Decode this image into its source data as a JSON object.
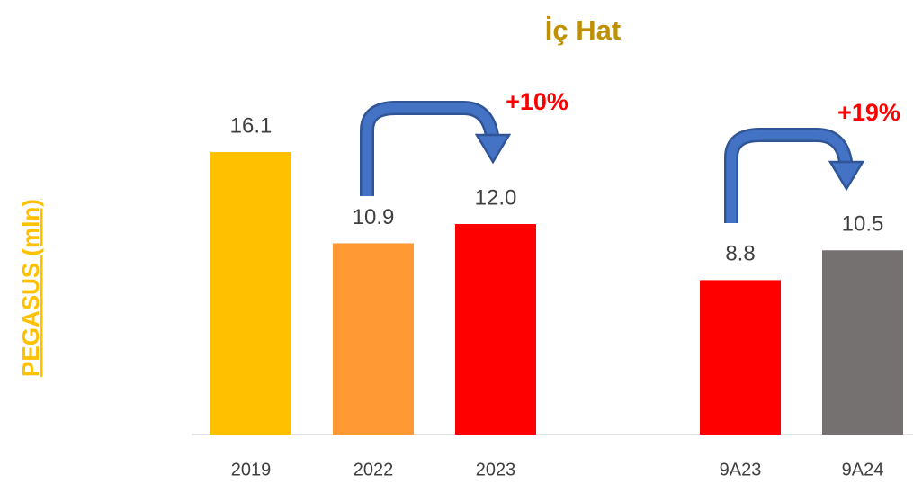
{
  "chart_data": {
    "type": "bar",
    "title": "İç Hat",
    "y_label": "PEGASUS (mln)",
    "categories": [
      "2019",
      "2022",
      "2023",
      null,
      "9A23",
      "9A24"
    ],
    "values": [
      16.1,
      10.9,
      12.0,
      null,
      8.8,
      10.5
    ],
    "value_labels": [
      "16.1",
      "10.9",
      "12.0",
      null,
      "8.8",
      "10.5"
    ],
    "colors": [
      "#ffc000",
      "#ff9933",
      "#ff0000",
      null,
      "#ff0000",
      "#767171"
    ],
    "ylim": [
      0,
      18
    ],
    "annotations": [
      "+10%",
      "+19%"
    ]
  }
}
